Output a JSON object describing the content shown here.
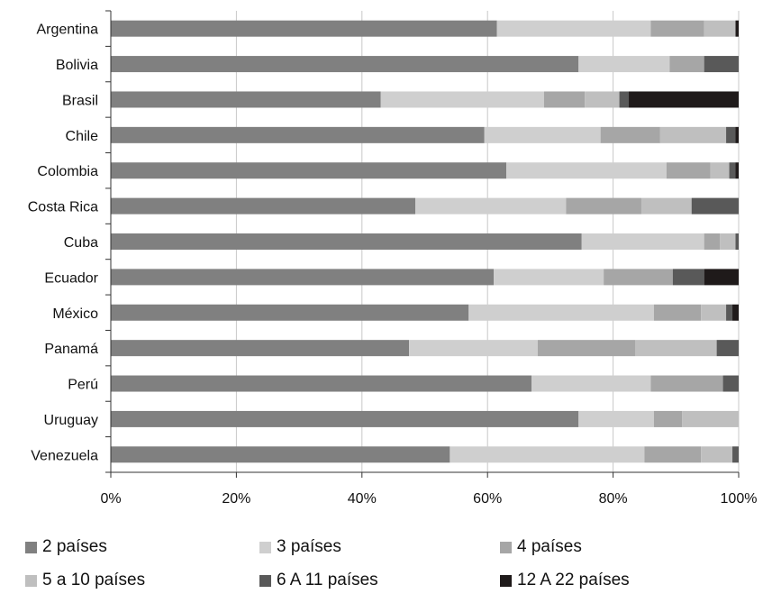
{
  "chart_data": {
    "type": "bar",
    "orientation": "horizontal",
    "stacked": "percent",
    "title": "",
    "xlabel": "",
    "ylabel": "",
    "xlim": [
      0,
      100
    ],
    "x_ticks": [
      "0%",
      "20%",
      "40%",
      "60%",
      "80%",
      "100%"
    ],
    "grid": "vertical",
    "legend_position": "bottom",
    "categories": [
      "Argentina",
      "Bolivia",
      "Brasil",
      "Chile",
      "Colombia",
      "Costa Rica",
      "Cuba",
      "Ecuador",
      "México",
      "Panamá",
      "Perú",
      "Uruguay",
      "Venezuela"
    ],
    "series": [
      {
        "name": "2 países",
        "color": "#808080",
        "values": [
          61.5,
          74.5,
          43,
          59.5,
          63,
          48.5,
          75,
          61,
          57,
          47.5,
          67,
          74.5,
          54
        ]
      },
      {
        "name": "3 países",
        "color": "#cfcfcf",
        "values": [
          24.5,
          14.5,
          26,
          18.5,
          25.5,
          24,
          19.5,
          17.5,
          29.5,
          20.5,
          19,
          12,
          31
        ]
      },
      {
        "name": "4 países",
        "color": "#a6a6a6",
        "values": [
          8.5,
          5.5,
          6.5,
          9.5,
          7,
          12,
          2.5,
          11,
          7.5,
          15.5,
          11.5,
          4.5,
          9
        ]
      },
      {
        "name": "5 a 10 países",
        "color": "#bfbfbf",
        "values": [
          5,
          0,
          5.5,
          10.5,
          3,
          8,
          2.5,
          0,
          4,
          13,
          0,
          9,
          5
        ]
      },
      {
        "name": "6 A 11 países",
        "color": "#595959",
        "values": [
          0,
          5.5,
          1.5,
          1.5,
          1,
          7.5,
          0.5,
          5,
          1,
          3.5,
          2.5,
          0,
          1
        ]
      },
      {
        "name": "12 A 22 países",
        "color": "#1f1a1a",
        "values": [
          0.5,
          0,
          17.5,
          0.5,
          0.5,
          0,
          0,
          5.5,
          1,
          0,
          0,
          0,
          0
        ]
      }
    ]
  }
}
